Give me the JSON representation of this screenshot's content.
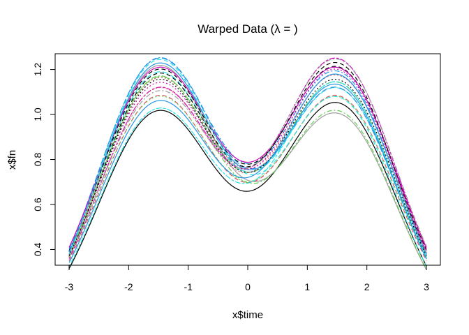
{
  "chart_data": {
    "type": "line",
    "title": "Warped Data (λ = )",
    "xlabel": "x$time",
    "ylabel": "x$fn",
    "xlim": [
      -3,
      3
    ],
    "ylim": [
      0.33,
      1.27
    ],
    "x_ticks": [
      "-3",
      "-2",
      "-1",
      "0",
      "1",
      "2",
      "3"
    ],
    "y_ticks": [
      "0.4",
      "0.6",
      "0.8",
      "1.0",
      "1.2"
    ],
    "grid": false,
    "legend": "none",
    "model": "y = 1.19*(a*exp(-(x+1.5)^2/2) + b*exp(-(x-1.5)^2/2)) - 0.01*(a+b) + c",
    "series": [
      {
        "a": 0.86,
        "b": 0.89,
        "c": 0.0,
        "color": "#000000",
        "dash": "solid"
      },
      {
        "a": 0.9,
        "b": 0.9,
        "c": 0.02,
        "color": "#DF536B",
        "dash": "6,4"
      },
      {
        "a": 0.88,
        "b": 0.88,
        "c": 0.04,
        "color": "#61D04F",
        "dash": "2,3"
      },
      {
        "a": 1.05,
        "b": 1.0,
        "c": 0.01,
        "color": "#2297E6",
        "dash": "7,3,2,3"
      },
      {
        "a": 0.98,
        "b": 0.92,
        "c": 0.03,
        "color": "#28E2E5",
        "dash": "9,4"
      },
      {
        "a": 0.93,
        "b": 1.04,
        "c": 0.02,
        "color": "#CD0BBC",
        "dash": "4,2,8,2"
      },
      {
        "a": 1.03,
        "b": 0.85,
        "c": 0.0,
        "color": "#9E9E9E",
        "dash": "solid"
      },
      {
        "a": 0.99,
        "b": 1.0,
        "c": 0.03,
        "color": "#000000",
        "dash": "6,4"
      },
      {
        "a": 0.95,
        "b": 0.96,
        "c": 0.04,
        "color": "#DF536B",
        "dash": "2,3"
      },
      {
        "a": 0.97,
        "b": 0.95,
        "c": 0.02,
        "color": "#61D04F",
        "dash": "7,3,2,3"
      },
      {
        "a": 1.04,
        "b": 0.93,
        "c": 0.02,
        "color": "#2297E6",
        "dash": "9,4"
      },
      {
        "a": 0.86,
        "b": 0.96,
        "c": 0.01,
        "color": "#28E2E5",
        "dash": "4,2,8,2"
      },
      {
        "a": 0.98,
        "b": 0.98,
        "c": 0.05,
        "color": "#CD0BBC",
        "dash": "solid"
      },
      {
        "a": 1.0,
        "b": 1.04,
        "c": 0.0,
        "color": "#000000",
        "dash": "6,4"
      },
      {
        "a": 0.92,
        "b": 0.97,
        "c": 0.03,
        "color": "#DF536B",
        "dash": "2,3"
      },
      {
        "a": 0.99,
        "b": 0.86,
        "c": 0.0,
        "color": "#61D04F",
        "dash": "7,3,2,3"
      },
      {
        "a": 1.03,
        "b": 0.95,
        "c": 0.01,
        "color": "#2297E6",
        "dash": "solid"
      },
      {
        "a": 1.06,
        "b": 0.92,
        "c": -0.01,
        "color": "#28E2E5",
        "dash": "6,4"
      },
      {
        "a": 0.94,
        "b": 0.99,
        "c": 0.03,
        "color": "#CD0BBC",
        "dash": "2,3"
      },
      {
        "a": 0.9,
        "b": 1.02,
        "c": 0.04,
        "color": "#9E9E9E",
        "dash": "7,3,2,3"
      },
      {
        "a": 0.96,
        "b": 0.96,
        "c": 0.02,
        "color": "#000000",
        "dash": "2,3"
      },
      {
        "a": 0.88,
        "b": 0.98,
        "c": 0.02,
        "color": "#2297E6",
        "dash": "solid"
      }
    ]
  }
}
